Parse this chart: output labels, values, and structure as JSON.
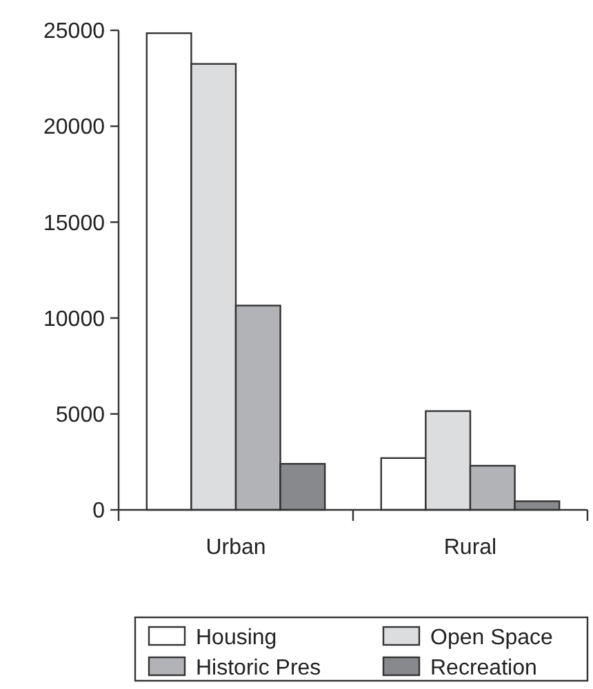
{
  "chart_data": {
    "type": "bar",
    "categories": [
      "Urban",
      "Rural"
    ],
    "series": [
      {
        "name": "Housing",
        "color": "#ffffff",
        "values": [
          24850,
          2700
        ]
      },
      {
        "name": "Open Space",
        "color": "#dcdddf",
        "values": [
          23250,
          5150
        ]
      },
      {
        "name": "Historic Pres",
        "color": "#b2b3b6",
        "values": [
          10650,
          2300
        ]
      },
      {
        "name": "Recreation",
        "color": "#88898c",
        "values": [
          2400,
          450
        ]
      }
    ],
    "ylim": [
      0,
      25000
    ],
    "yticks": [
      0,
      5000,
      10000,
      15000,
      20000,
      25000
    ],
    "grid": false,
    "legend": "bottom"
  }
}
